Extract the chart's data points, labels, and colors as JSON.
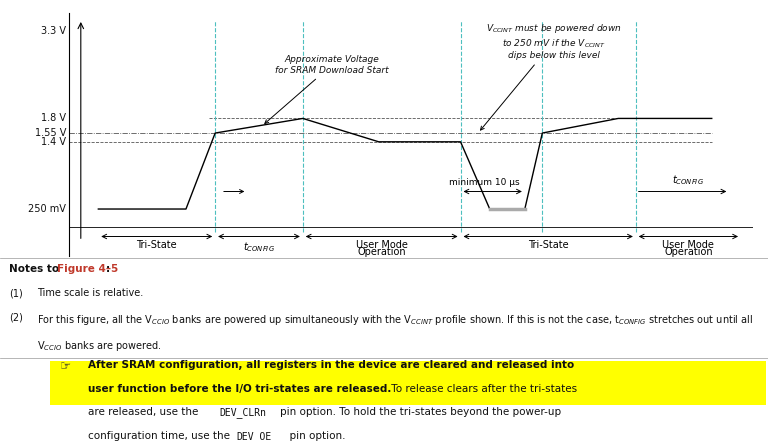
{
  "bg_color": "#ffffff",
  "fig_width": 7.68,
  "fig_height": 4.41,
  "dpi": 100,
  "waveform_color": "#000000",
  "dashed_line_color": "#4dbfbf",
  "ref_line_color": "#555555",
  "highlight_color": "#ffff00",
  "figure_ref_color": "#c0392b",
  "x_points": [
    0.0,
    1.5,
    2.0,
    3.5,
    4.8,
    6.2,
    6.7,
    7.0,
    7.3,
    7.6,
    8.9,
    9.2,
    10.5
  ],
  "y_points": [
    0.25,
    0.25,
    1.55,
    1.8,
    1.4,
    1.4,
    0.25,
    0.25,
    0.25,
    1.55,
    1.8,
    1.8,
    1.8
  ],
  "vlines_x": [
    2.0,
    3.5,
    6.2,
    7.6,
    9.2
  ],
  "ylim": [
    -0.55,
    3.6
  ],
  "xlim": [
    -0.5,
    11.2
  ],
  "y_33": 3.3,
  "y_18": 1.8,
  "y_155": 1.55,
  "y_14": 1.4,
  "y_250": 0.25
}
